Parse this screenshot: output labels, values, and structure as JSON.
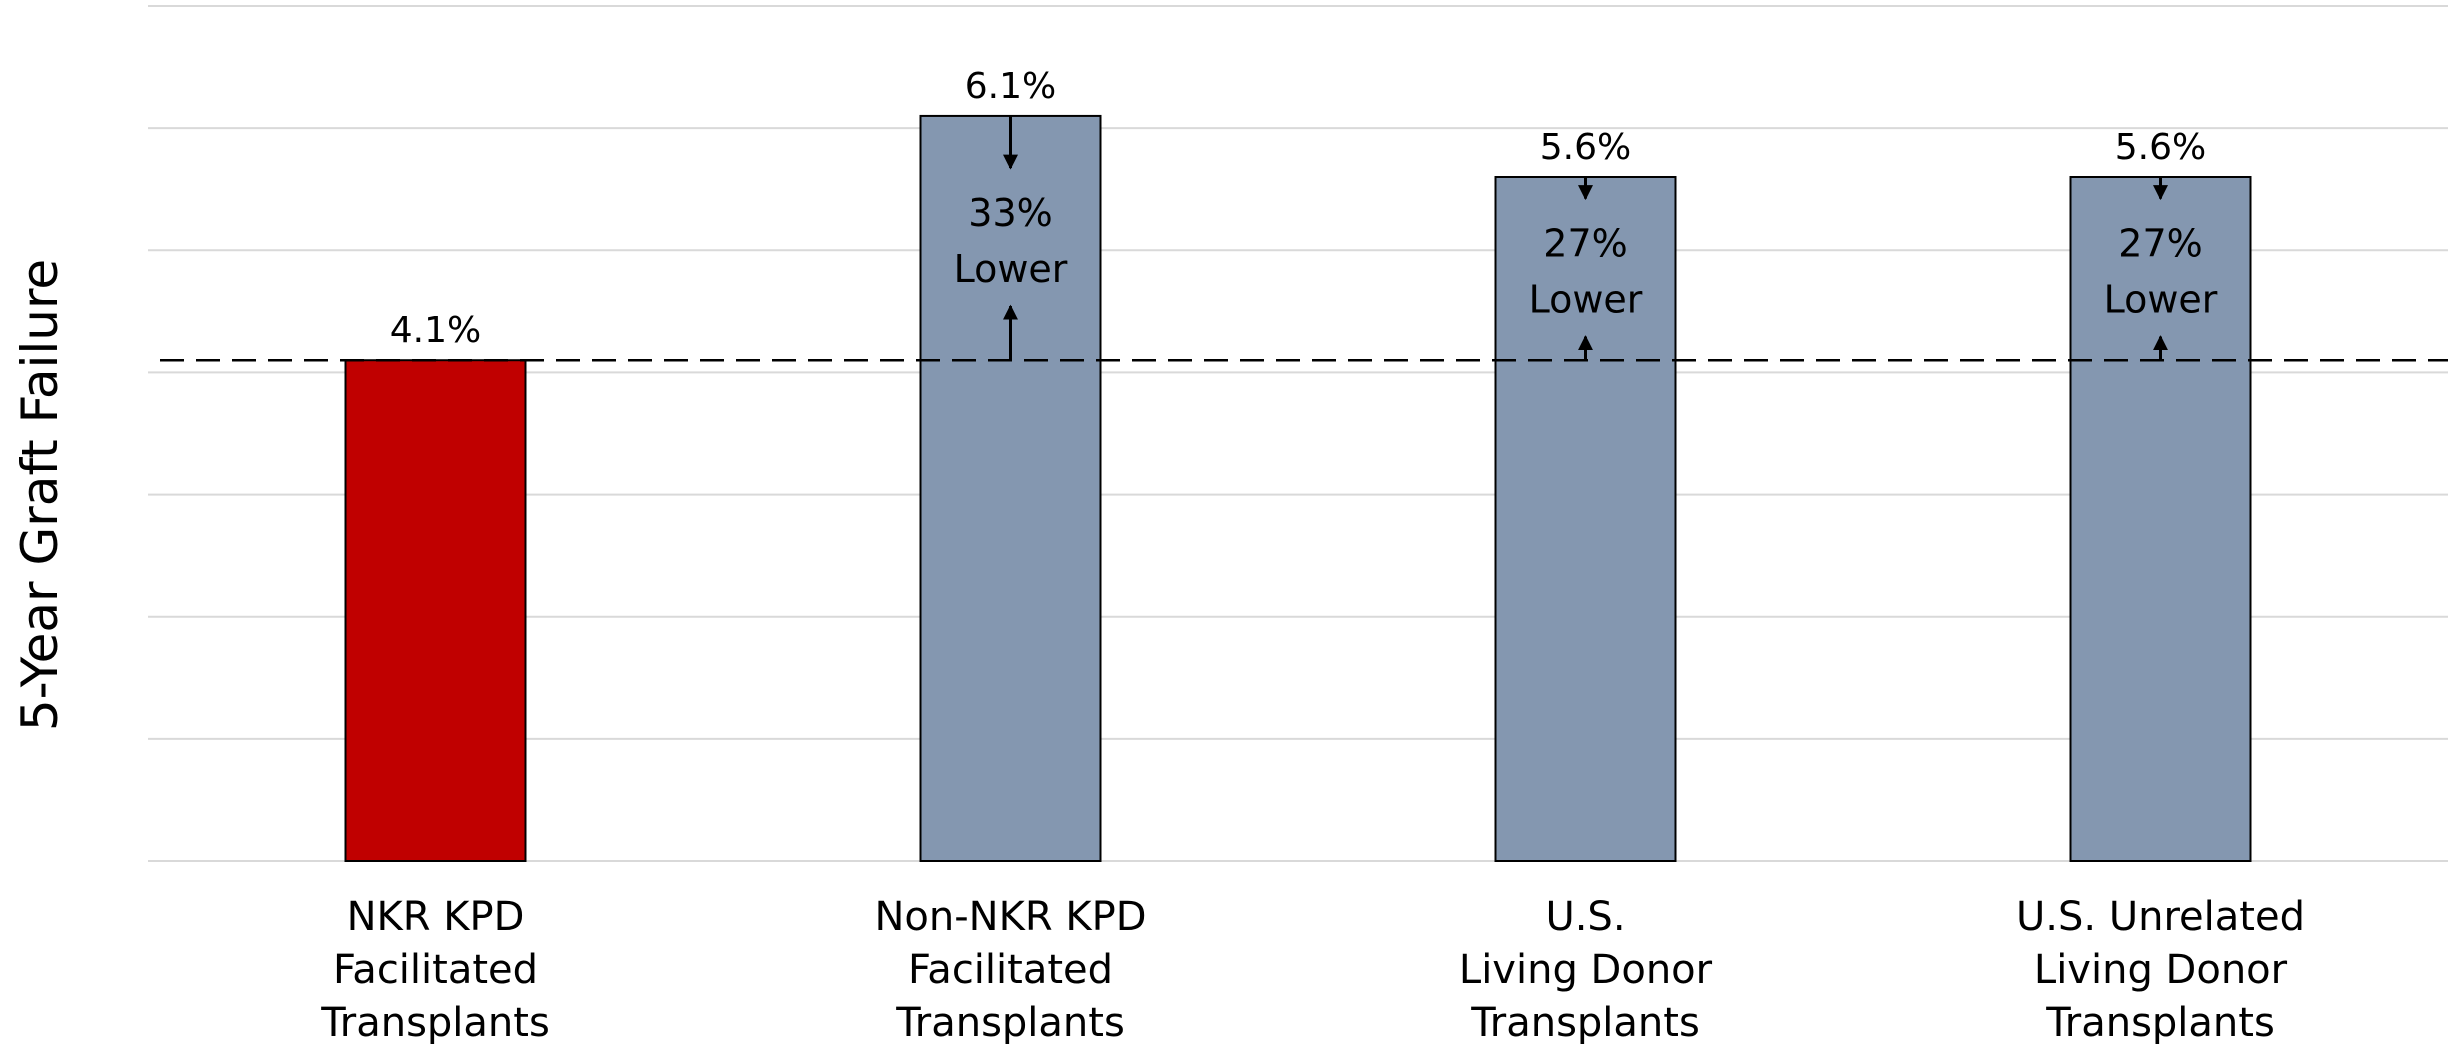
{
  "chart_data": {
    "type": "bar",
    "title": "",
    "xlabel": "",
    "ylabel": "5-Year Graft Failure",
    "ylim": [
      0,
      7
    ],
    "grid": true,
    "categories": [
      [
        "NKR KPD",
        "Facilitated",
        "Transplants"
      ],
      [
        "Non-NKR KPD",
        "Facilitated",
        "Transplants"
      ],
      [
        "U.S.",
        "Living Donor",
        "Transplants"
      ],
      [
        "U.S. Unrelated",
        "Living Donor",
        "Transplants"
      ]
    ],
    "values": [
      4.1,
      6.1,
      5.6,
      5.6
    ],
    "value_labels": [
      "4.1%",
      "6.1%",
      "5.6%",
      "5.6%"
    ],
    "bar_colors": [
      "#C00000",
      "#8497B0",
      "#8497B0",
      "#8497B0"
    ],
    "reference_line": {
      "value": 4.1,
      "style": "dashed"
    },
    "annotations": [
      null,
      [
        "33%",
        "Lower"
      ],
      [
        "27%",
        "Lower"
      ],
      [
        "27%",
        "Lower"
      ]
    ]
  }
}
